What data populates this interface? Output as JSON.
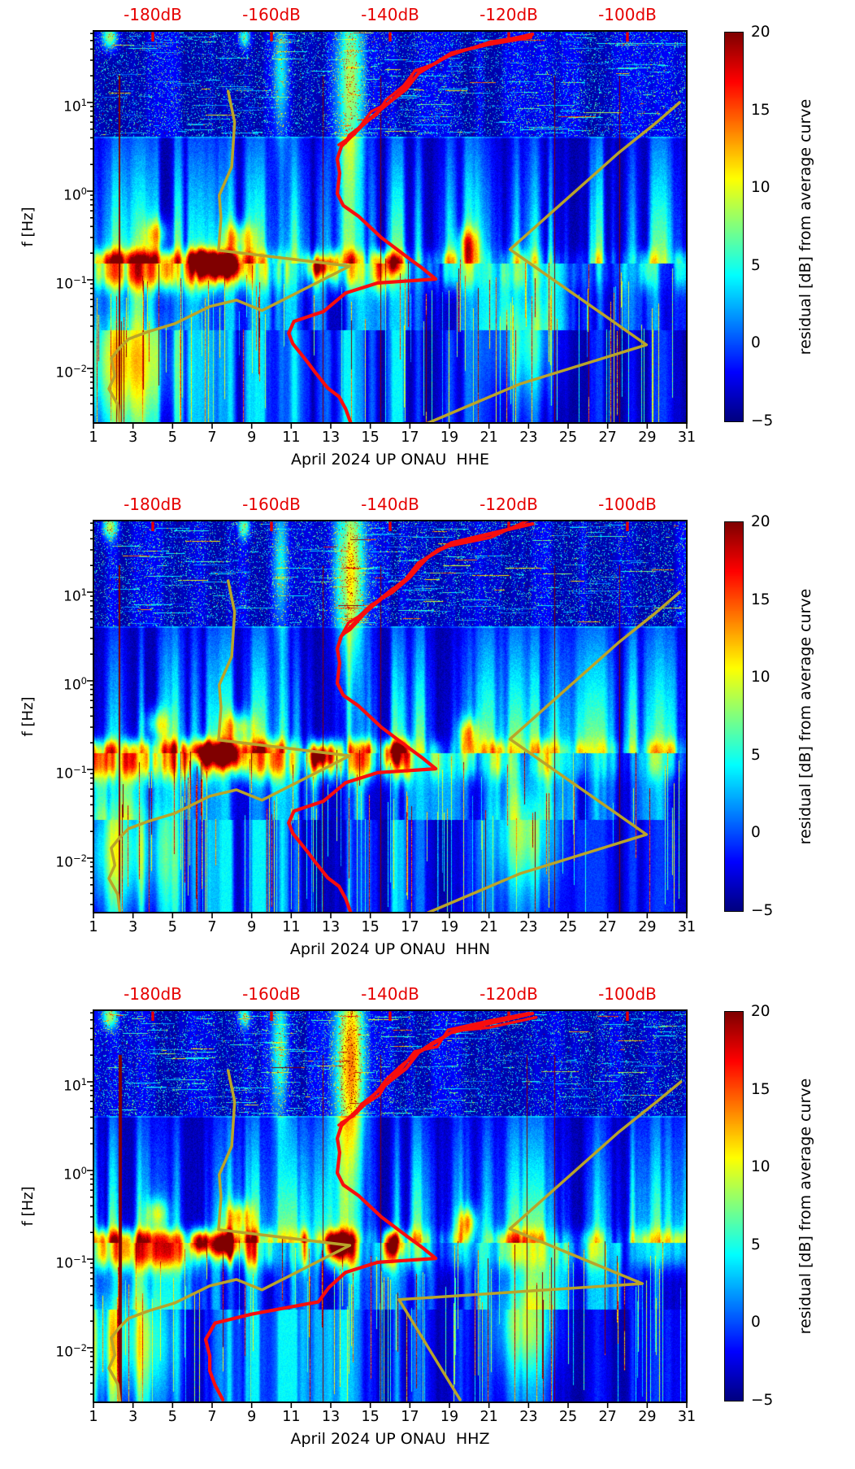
{
  "chart_data": {
    "type": "heatmap",
    "figure": "Three-component seismic noise spectrograms (probabilistic PSD residuals) with overlaid average PSD curves",
    "colormap": "jet",
    "colors": {
      "top_axis_label_red": "#e60000",
      "red_curve": "#f80d0d",
      "olive_curve": "#b9a42a",
      "axis_black": "#000000",
      "background": "#ffffff"
    },
    "shared": {
      "ylabel": "f [Hz]",
      "y_tick_labels": [
        {
          "base": "10",
          "exp": "1"
        },
        {
          "base": "10",
          "exp": "0"
        },
        {
          "base": "10",
          "exp": "−1"
        },
        {
          "base": "10",
          "exp": "−2"
        }
      ],
      "y_tick_values_hz": [
        10,
        1,
        0.1,
        0.01
      ],
      "y_range_hz": [
        0.0023,
        64
      ],
      "x_tick_labels": [
        "1",
        "3",
        "5",
        "7",
        "9",
        "11",
        "13",
        "15",
        "17",
        "19",
        "21",
        "23",
        "25",
        "27",
        "29",
        "31"
      ],
      "x_tick_days": [
        1,
        3,
        5,
        7,
        9,
        11,
        13,
        15,
        17,
        19,
        21,
        23,
        25,
        27,
        29,
        31
      ],
      "x_range_days": [
        1,
        31
      ],
      "top_axis": {
        "labels": [
          "-180dB",
          "-160dB",
          "-140dB",
          "-120dB",
          "-100dB"
        ],
        "label_days": [
          4,
          10,
          16,
          22,
          28
        ],
        "db_at_plot_edges": [
          -190,
          -90
        ]
      },
      "colorbar": {
        "label": "residual [dB] from average curve",
        "tick_labels": [
          "20",
          "15",
          "10",
          "5",
          "0",
          "−5"
        ],
        "tick_values": [
          20,
          15,
          10,
          5,
          0,
          -5
        ],
        "range": [
          -5,
          20
        ],
        "colormap": "jet"
      },
      "curves": {
        "red_mean_psd_db_hz": [
          [
            -116,
            59
          ],
          [
            -123.6,
            45
          ],
          [
            -129.7,
            36
          ],
          [
            -132.5,
            27.5
          ],
          [
            -135.2,
            21.4
          ],
          [
            -137.3,
            14.1
          ],
          [
            -140,
            10.2
          ],
          [
            -142.5,
            7.4
          ],
          [
            -144.8,
            5.4
          ],
          [
            -146.6,
            4.1
          ],
          [
            -148.2,
            3.2
          ],
          [
            -148.9,
            2.3
          ],
          [
            -148.5,
            1.6
          ],
          [
            -148.9,
            0.94
          ],
          [
            -147.9,
            0.69
          ],
          [
            -145.3,
            0.52
          ],
          [
            -141.5,
            0.3
          ],
          [
            -137.1,
            0.18
          ],
          [
            -134.5,
            0.134
          ],
          [
            -132.3,
            0.102
          ],
          [
            -142.1,
            0.092
          ],
          [
            -147.5,
            0.071
          ],
          [
            -151.2,
            0.044
          ],
          [
            -156.2,
            0.034
          ],
          [
            -157.1,
            0.025
          ],
          [
            -156.4,
            0.019
          ],
          [
            -154,
            0.012
          ],
          [
            -152.6,
            0.009
          ],
          [
            -150.5,
            0.006
          ],
          [
            -148.6,
            0.0048
          ],
          [
            -147.5,
            0.0035
          ],
          [
            -146.6,
            0.0024
          ]
        ],
        "olive_left_db_hz": [
          [
            -167.3,
            13.4
          ],
          [
            -166.2,
            6
          ],
          [
            -166.7,
            1.88
          ],
          [
            -168.8,
            0.9
          ],
          [
            -168.5,
            0.5
          ],
          [
            -168.9,
            0.215
          ],
          [
            -146.8,
            0.143
          ],
          [
            -161.6,
            0.045
          ],
          [
            -165.9,
            0.059
          ],
          [
            -170.4,
            0.05
          ],
          [
            -176.3,
            0.032
          ],
          [
            -180.8,
            0.026
          ],
          [
            -184.1,
            0.0215
          ],
          [
            -185.6,
            0.017
          ],
          [
            -187,
            0.013
          ],
          [
            -186.4,
            0.0083
          ],
          [
            -187.4,
            0.0059
          ],
          [
            -185.9,
            0.0039
          ],
          [
            -185.5,
            0.0023
          ]
        ]
      }
    },
    "panels": [
      {
        "component": "HHE",
        "xlabel": "April 2024 UP ONAU  HHE",
        "seed": 101,
        "olive_right_db_hz": [
          [
            -91.2,
            10
          ],
          [
            -95.3,
            5.8
          ],
          [
            -101.5,
            2.7
          ],
          [
            -119.8,
            0.22
          ],
          [
            -96.8,
            0.0185
          ],
          [
            -118.1,
            0.0067
          ],
          [
            -133.8,
            0.0024
          ]
        ],
        "red_tail_db_hz": null,
        "features": {
          "microseism_band_hz": [
            0.08,
            0.35
          ],
          "hot_blobs": [
            {
              "day": 1.8,
              "hz": 55,
              "amp": 12,
              "wd": 0.28,
              "wdec": 0.1
            },
            {
              "day": 8.6,
              "hz": 55,
              "amp": 9,
              "wd": 0.22,
              "wdec": 0.09
            },
            {
              "day": 13.95,
              "hz": 16,
              "amp": 12,
              "wd": 0.5,
              "wdec": 0.8
            },
            {
              "day": 10.45,
              "hz": 22,
              "amp": 8,
              "wd": 0.3,
              "wdec": 0.55
            },
            {
              "day": 7.6,
              "hz": 0.145,
              "amp": 22,
              "wd": 0.55,
              "wdec": 0.1
            },
            {
              "day": 6.4,
              "hz": 0.16,
              "amp": 16,
              "wd": 0.35,
              "wdec": 0.09
            },
            {
              "day": 12.5,
              "hz": 0.14,
              "amp": 14,
              "wd": 0.45,
              "wdec": 0.08
            },
            {
              "day": 8.3,
              "hz": 0.3,
              "amp": 11,
              "wd": 0.5,
              "wdec": 0.12
            },
            {
              "day": 4.2,
              "hz": 0.33,
              "amp": 9,
              "wd": 0.4,
              "wdec": 0.12
            },
            {
              "day": 16.2,
              "hz": 0.15,
              "amp": 12,
              "wd": 0.3,
              "wdec": 0.08
            },
            {
              "day": 19.9,
              "hz": 0.26,
              "amp": 11,
              "wd": 0.35,
              "wdec": 0.12
            },
            {
              "day": 2.5,
              "hz": 0.012,
              "amp": 9,
              "wd": 1.7,
              "wdec": 0.5
            },
            {
              "day": 22.8,
              "hz": 0.02,
              "amp": 7,
              "wd": 1.1,
              "wdec": 0.45
            }
          ],
          "bright_columns_days": [
            2.1,
            3.3,
            5.2,
            7.9,
            9.2,
            10.4,
            11.1,
            13.9,
            14.4,
            16.3,
            17.4,
            19.9,
            20.8,
            22.4,
            23.3,
            24.1,
            26.6,
            28.2,
            29.5
          ],
          "red_line_days": [
            {
              "day": 2.27,
              "w": 2
            },
            {
              "day": 12.6,
              "w": 1
            },
            {
              "day": 15.5,
              "w": 1
            },
            {
              "day": 24.3,
              "w": 1
            },
            {
              "day": 27.6,
              "w": 1
            }
          ]
        }
      },
      {
        "component": "HHN",
        "xlabel": "April 2024 UP ONAU  HHN",
        "seed": 202,
        "olive_right_db_hz": [
          [
            -91.2,
            10
          ],
          [
            -95.3,
            5.8
          ],
          [
            -101.5,
            2.7
          ],
          [
            -119.8,
            0.22
          ],
          [
            -96.8,
            0.0185
          ],
          [
            -118.1,
            0.0067
          ],
          [
            -133.8,
            0.0024
          ]
        ],
        "red_tail_db_hz": null,
        "features": {
          "microseism_band_hz": [
            0.08,
            0.35
          ],
          "hot_blobs": [
            {
              "day": 1.8,
              "hz": 55,
              "amp": 11,
              "wd": 0.28,
              "wdec": 0.1
            },
            {
              "day": 8.6,
              "hz": 55,
              "amp": 9,
              "wd": 0.22,
              "wdec": 0.09
            },
            {
              "day": 13.95,
              "hz": 16,
              "amp": 13,
              "wd": 0.5,
              "wdec": 0.8
            },
            {
              "day": 10.45,
              "hz": 22,
              "amp": 8,
              "wd": 0.3,
              "wdec": 0.55
            },
            {
              "day": 7.6,
              "hz": 0.145,
              "amp": 22,
              "wd": 0.55,
              "wdec": 0.1
            },
            {
              "day": 6.4,
              "hz": 0.16,
              "amp": 15,
              "wd": 0.35,
              "wdec": 0.09
            },
            {
              "day": 12.5,
              "hz": 0.14,
              "amp": 13,
              "wd": 0.45,
              "wdec": 0.08
            },
            {
              "day": 8.3,
              "hz": 0.3,
              "amp": 11,
              "wd": 0.5,
              "wdec": 0.12
            },
            {
              "day": 4.2,
              "hz": 0.33,
              "amp": 9,
              "wd": 0.4,
              "wdec": 0.12
            },
            {
              "day": 16.2,
              "hz": 0.15,
              "amp": 12,
              "wd": 0.3,
              "wdec": 0.08
            },
            {
              "day": 19.9,
              "hz": 0.26,
              "amp": 11,
              "wd": 0.35,
              "wdec": 0.12
            },
            {
              "day": 2.5,
              "hz": 0.012,
              "amp": 9,
              "wd": 1.7,
              "wdec": 0.5
            },
            {
              "day": 22.8,
              "hz": 0.02,
              "amp": 8,
              "wd": 1.1,
              "wdec": 0.45
            }
          ],
          "bright_columns_days": [
            2.1,
            3.4,
            5.1,
            7.8,
            9.3,
            10.4,
            11.2,
            13.9,
            14.5,
            16.2,
            17.5,
            19.8,
            20.9,
            22.3,
            23.4,
            24.2,
            26.5,
            28.3,
            29.6
          ],
          "red_line_days": [
            {
              "day": 2.27,
              "w": 2
            },
            {
              "day": 12.6,
              "w": 1
            },
            {
              "day": 15.5,
              "w": 1
            },
            {
              "day": 24.3,
              "w": 1
            },
            {
              "day": 27.6,
              "w": 1
            }
          ]
        }
      },
      {
        "component": "HHZ",
        "xlabel": "April 2024 UP ONAU  HHZ",
        "seed": 303,
        "olive_right_db_hz": [
          [
            -91,
            10
          ],
          [
            -95.3,
            5.8
          ],
          [
            -101.5,
            2.7
          ],
          [
            -119.8,
            0.22
          ],
          [
            -97.5,
            0.053
          ],
          [
            -138.5,
            0.035
          ],
          [
            -128.2,
            0.0026
          ]
        ],
        "red_tail_db_hz": [
          [
            -150.3,
            0.048
          ],
          [
            -152.1,
            0.033
          ],
          [
            -163.3,
            0.024
          ],
          [
            -169.5,
            0.019
          ],
          [
            -171.1,
            0.0124
          ],
          [
            -170.4,
            0.0081
          ],
          [
            -170.4,
            0.0055
          ],
          [
            -169.5,
            0.0038
          ],
          [
            -168.2,
            0.0026
          ]
        ],
        "features": {
          "microseism_band_hz": [
            0.08,
            0.35
          ],
          "hot_blobs": [
            {
              "day": 1.8,
              "hz": 55,
              "amp": 11,
              "wd": 0.28,
              "wdec": 0.1
            },
            {
              "day": 8.6,
              "hz": 55,
              "amp": 9,
              "wd": 0.22,
              "wdec": 0.09
            },
            {
              "day": 13.95,
              "hz": 16,
              "amp": 16,
              "wd": 0.55,
              "wdec": 0.85
            },
            {
              "day": 10.45,
              "hz": 22,
              "amp": 9,
              "wd": 0.3,
              "wdec": 0.55
            },
            {
              "day": 7.6,
              "hz": 0.145,
              "amp": 22,
              "wd": 0.55,
              "wdec": 0.1
            },
            {
              "day": 6.4,
              "hz": 0.16,
              "amp": 16,
              "wd": 0.35,
              "wdec": 0.09
            },
            {
              "day": 13.3,
              "hz": 0.14,
              "amp": 15,
              "wd": 0.45,
              "wdec": 0.08
            },
            {
              "day": 8.3,
              "hz": 0.3,
              "amp": 11,
              "wd": 0.5,
              "wdec": 0.12
            },
            {
              "day": 4.2,
              "hz": 0.33,
              "amp": 9,
              "wd": 0.4,
              "wdec": 0.12
            },
            {
              "day": 16.2,
              "hz": 0.15,
              "amp": 12,
              "wd": 0.3,
              "wdec": 0.08
            },
            {
              "day": 19.9,
              "hz": 0.26,
              "amp": 12,
              "wd": 0.35,
              "wdec": 0.12
            },
            {
              "day": 2.5,
              "hz": 0.012,
              "amp": 9,
              "wd": 1.7,
              "wdec": 0.5
            },
            {
              "day": 22.8,
              "hz": 0.02,
              "amp": 8,
              "wd": 1.1,
              "wdec": 0.45
            }
          ],
          "bright_columns_days": [
            2.1,
            3.3,
            5.2,
            7.9,
            9.2,
            10.5,
            11.1,
            13.9,
            14.4,
            16.3,
            17.4,
            19.9,
            20.8,
            22.4,
            23.3,
            24.1,
            26.6,
            28.2,
            29.5
          ],
          "red_line_days": [
            {
              "day": 2.27,
              "w": 4
            },
            {
              "day": 12.6,
              "w": 1
            },
            {
              "day": 15.5,
              "w": 1
            },
            {
              "day": 22.9,
              "w": 1
            },
            {
              "day": 24.3,
              "w": 1
            }
          ]
        }
      }
    ]
  }
}
